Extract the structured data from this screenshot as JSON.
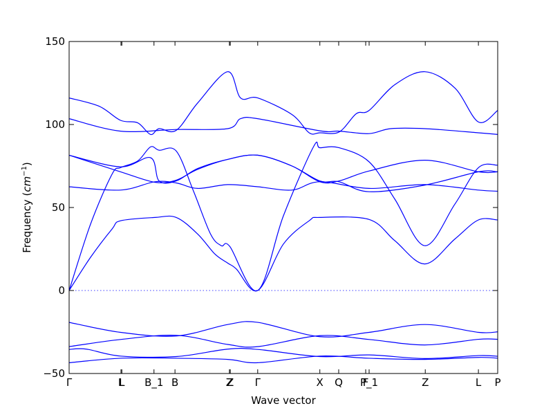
{
  "chart_data": {
    "type": "line",
    "title": "",
    "xlabel": "Wave vector",
    "ylabel": "Frequency ($cm^{-1}$)",
    "ylabel_text": "Frequency (",
    "ylabel_unit": "cm",
    "ylabel_exp": "−1",
    "ylabel_close": ")",
    "ylim": [
      -50,
      150
    ],
    "xlim": [
      0,
      1
    ],
    "yticks": [
      -50,
      0,
      50,
      100,
      150
    ],
    "ytick_labels": [
      "−50",
      "0",
      "50",
      "100",
      "150"
    ],
    "reference_line": {
      "y": 0,
      "style": "dotted",
      "color": "#0000ff"
    },
    "color": "#0000ff",
    "grid": false,
    "xticks": [
      {
        "label": "Γ",
        "x": 0.0
      },
      {
        "label": "L",
        "x": 0.121
      },
      {
        "label": "L",
        "x": 0.123
      },
      {
        "label": "B_1",
        "x": 0.198
      },
      {
        "label": "B",
        "x": 0.247
      },
      {
        "label": "Z",
        "x": 0.374
      },
      {
        "label": "Z",
        "x": 0.376
      },
      {
        "label": "Γ",
        "x": 0.44
      },
      {
        "label": "X",
        "x": 0.585
      },
      {
        "label": "Q",
        "x": 0.629
      },
      {
        "label": "F",
        "x": 0.692
      },
      {
        "label": "P_1",
        "x": 0.7
      },
      {
        "label": "Z",
        "x": 0.831
      },
      {
        "label": "L",
        "x": 0.955
      },
      {
        "label": "P",
        "x": 1.0
      }
    ],
    "series": [
      {
        "values": [
          [
            0.0,
            -43.5
          ],
          [
            0.12,
            -40.8
          ],
          [
            0.25,
            -40.8
          ],
          [
            0.37,
            -41.5
          ],
          [
            0.44,
            -43.5
          ],
          [
            0.585,
            -39.5
          ],
          [
            0.7,
            -40.8
          ],
          [
            0.83,
            -41.5
          ],
          [
            0.955,
            -40.3
          ],
          [
            1.0,
            -40.8
          ]
        ]
      },
      {
        "values": [
          [
            0.0,
            -35.5
          ],
          [
            0.04,
            -35.3
          ],
          [
            0.12,
            -39.5
          ],
          [
            0.25,
            -39.8
          ],
          [
            0.37,
            -35.3
          ],
          [
            0.44,
            -35.5
          ],
          [
            0.585,
            -39.8
          ],
          [
            0.7,
            -38.8
          ],
          [
            0.83,
            -41.0
          ],
          [
            0.955,
            -39.2
          ],
          [
            1.0,
            -39.6
          ]
        ]
      },
      {
        "values": [
          [
            0.0,
            -33.8
          ],
          [
            0.12,
            -29.5
          ],
          [
            0.25,
            -27.0
          ],
          [
            0.37,
            -32.5
          ],
          [
            0.44,
            -33.8
          ],
          [
            0.585,
            -27.2
          ],
          [
            0.7,
            -29.5
          ],
          [
            0.83,
            -32.8
          ],
          [
            0.955,
            -29.4
          ],
          [
            1.0,
            -29.4
          ]
        ]
      },
      {
        "values": [
          [
            0.0,
            -19.2
          ],
          [
            0.12,
            -25.2
          ],
          [
            0.25,
            -27.4
          ],
          [
            0.37,
            -20.5
          ],
          [
            0.44,
            -19.2
          ],
          [
            0.585,
            -27.8
          ],
          [
            0.7,
            -25.2
          ],
          [
            0.83,
            -20.5
          ],
          [
            0.955,
            -25.2
          ],
          [
            1.0,
            -24.9
          ]
        ]
      },
      {
        "values": [
          [
            0.0,
            0.0
          ],
          [
            0.05,
            20.0
          ],
          [
            0.1,
            37.0
          ],
          [
            0.12,
            42.0
          ],
          [
            0.2,
            44.0
          ],
          [
            0.25,
            44.0
          ],
          [
            0.3,
            34.0
          ],
          [
            0.34,
            22.0
          ],
          [
            0.37,
            16.5
          ],
          [
            0.39,
            13.0
          ],
          [
            0.44,
            0.0
          ],
          [
            0.5,
            28.0
          ],
          [
            0.56,
            42.0
          ],
          [
            0.585,
            44.0
          ],
          [
            0.7,
            42.8
          ],
          [
            0.76,
            30.0
          ],
          [
            0.83,
            16.0
          ],
          [
            0.9,
            31.0
          ],
          [
            0.955,
            42.5
          ],
          [
            1.0,
            42.5
          ]
        ]
      },
      {
        "values": [
          [
            0.0,
            0.0
          ],
          [
            0.05,
            40.0
          ],
          [
            0.1,
            70.0
          ],
          [
            0.12,
            74.0
          ],
          [
            0.16,
            78.0
          ],
          [
            0.19,
            86.5
          ],
          [
            0.21,
            84.5
          ],
          [
            0.25,
            84.0
          ],
          [
            0.29,
            60.0
          ],
          [
            0.33,
            34.0
          ],
          [
            0.355,
            27.0
          ],
          [
            0.375,
            26.5
          ],
          [
            0.44,
            0.0
          ],
          [
            0.5,
            45.0
          ],
          [
            0.57,
            86.5
          ],
          [
            0.585,
            86.0
          ],
          [
            0.63,
            86.0
          ],
          [
            0.7,
            77.5
          ],
          [
            0.76,
            55.0
          ],
          [
            0.83,
            27.0
          ],
          [
            0.9,
            52.0
          ],
          [
            0.955,
            74.0
          ],
          [
            1.0,
            75.5
          ]
        ]
      },
      {
        "values": [
          [
            0.0,
            62.5
          ],
          [
            0.12,
            60.5
          ],
          [
            0.2,
            65.5
          ],
          [
            0.25,
            64.8
          ],
          [
            0.3,
            61.5
          ],
          [
            0.37,
            63.8
          ],
          [
            0.44,
            62.5
          ],
          [
            0.52,
            60.5
          ],
          [
            0.585,
            65.5
          ],
          [
            0.7,
            61.5
          ],
          [
            0.83,
            63.8
          ],
          [
            0.955,
            60.5
          ],
          [
            1.0,
            59.8
          ]
        ]
      },
      {
        "values": [
          [
            0.0,
            81.5
          ],
          [
            0.12,
            71.5
          ],
          [
            0.2,
            65.2
          ],
          [
            0.25,
            66.5
          ],
          [
            0.3,
            73.0
          ],
          [
            0.37,
            79.0
          ],
          [
            0.44,
            81.5
          ],
          [
            0.52,
            75.0
          ],
          [
            0.585,
            66.0
          ],
          [
            0.63,
            65.5
          ],
          [
            0.7,
            59.5
          ],
          [
            0.83,
            63.5
          ],
          [
            0.955,
            71.5
          ],
          [
            1.0,
            71.5
          ]
        ]
      },
      {
        "values": [
          [
            0.0,
            81.5
          ],
          [
            0.12,
            74.5
          ],
          [
            0.19,
            80.0
          ],
          [
            0.21,
            66.0
          ],
          [
            0.25,
            66.0
          ],
          [
            0.3,
            73.5
          ],
          [
            0.37,
            79.0
          ],
          [
            0.44,
            81.5
          ],
          [
            0.52,
            75.0
          ],
          [
            0.585,
            65.5
          ],
          [
            0.63,
            66.0
          ],
          [
            0.7,
            72.0
          ],
          [
            0.83,
            78.5
          ],
          [
            0.955,
            71.5
          ],
          [
            1.0,
            71.5
          ]
        ]
      },
      {
        "values": [
          [
            0.0,
            103.5
          ],
          [
            0.12,
            96.0
          ],
          [
            0.25,
            97.0
          ],
          [
            0.37,
            97.5
          ],
          [
            0.4,
            103.5
          ],
          [
            0.44,
            103.5
          ],
          [
            0.585,
            96.2
          ],
          [
            0.63,
            96.0
          ],
          [
            0.7,
            94.5
          ],
          [
            0.75,
            97.5
          ],
          [
            0.83,
            97.5
          ],
          [
            0.955,
            95.0
          ],
          [
            1.0,
            94.0
          ]
        ]
      },
      {
        "values": [
          [
            0.0,
            116.0
          ],
          [
            0.07,
            111.0
          ],
          [
            0.12,
            102.5
          ],
          [
            0.16,
            101.0
          ],
          [
            0.19,
            94.0
          ],
          [
            0.21,
            97.5
          ],
          [
            0.25,
            96.5
          ],
          [
            0.3,
            113.0
          ],
          [
            0.37,
            131.8
          ],
          [
            0.4,
            116.0
          ],
          [
            0.44,
            116.0
          ],
          [
            0.52,
            106.0
          ],
          [
            0.56,
            95.0
          ],
          [
            0.585,
            95.0
          ],
          [
            0.63,
            95.5
          ],
          [
            0.67,
            106.5
          ],
          [
            0.7,
            108.5
          ],
          [
            0.76,
            124.0
          ],
          [
            0.83,
            131.8
          ],
          [
            0.9,
            122.0
          ],
          [
            0.955,
            101.5
          ],
          [
            1.0,
            108.5
          ]
        ]
      }
    ]
  }
}
